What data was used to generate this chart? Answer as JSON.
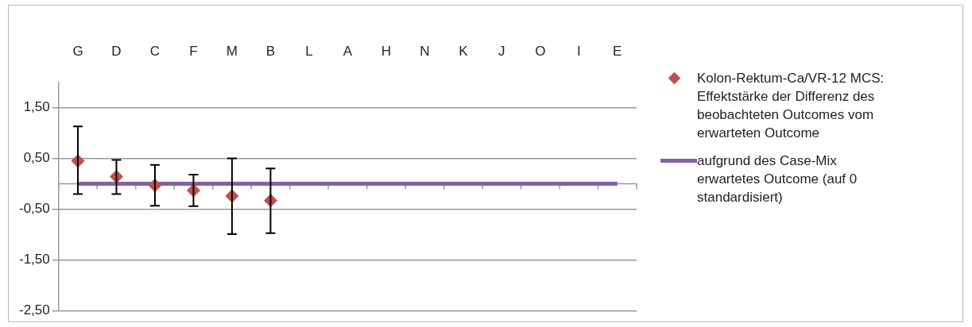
{
  "chart_data": {
    "type": "scatter",
    "categories": [
      "G",
      "D",
      "C",
      "F",
      "M",
      "B",
      "L",
      "A",
      "H",
      "N",
      "K",
      "J",
      "O",
      "I",
      "E"
    ],
    "series": [
      {
        "name": "Kolon-Rektum-Ca/VR-12 MCS: Effektstärke der Differenz des beobachteten Outcomes vom erwarteten Outcome",
        "color": "#c0504d",
        "marker": "diamond",
        "values": [
          0.45,
          0.14,
          -0.03,
          -0.13,
          -0.24,
          -0.33,
          null,
          null,
          null,
          null,
          null,
          null,
          null,
          null,
          null
        ],
        "errors": [
          [
            -0.2,
            1.13
          ],
          [
            -0.2,
            0.47
          ],
          [
            -0.43,
            0.37
          ],
          [
            -0.44,
            0.18
          ],
          [
            -0.99,
            0.5
          ],
          [
            -0.97,
            0.3
          ],
          null,
          null,
          null,
          null,
          null,
          null,
          null,
          null,
          null
        ]
      },
      {
        "type": "line",
        "name": "aufgrund des Case-Mix erwartetes Outcome (auf 0 standardisiert)",
        "color": "#8064a2",
        "marker": "none",
        "values": [
          0,
          0,
          0,
          0,
          0,
          0,
          0,
          0,
          0,
          0,
          0,
          0,
          0,
          0,
          0
        ]
      }
    ],
    "ylim": [
      -2.5,
      2.0
    ],
    "yticks": [
      {
        "value": 1.5,
        "label": "1,50"
      },
      {
        "value": 0.5,
        "label": "0,50"
      },
      {
        "value": -0.5,
        "label": "-0,50"
      },
      {
        "value": -1.5,
        "label": "-1,50"
      },
      {
        "value": -2.5,
        "label": "-2,50"
      }
    ],
    "grid": "y",
    "legend": "right"
  }
}
